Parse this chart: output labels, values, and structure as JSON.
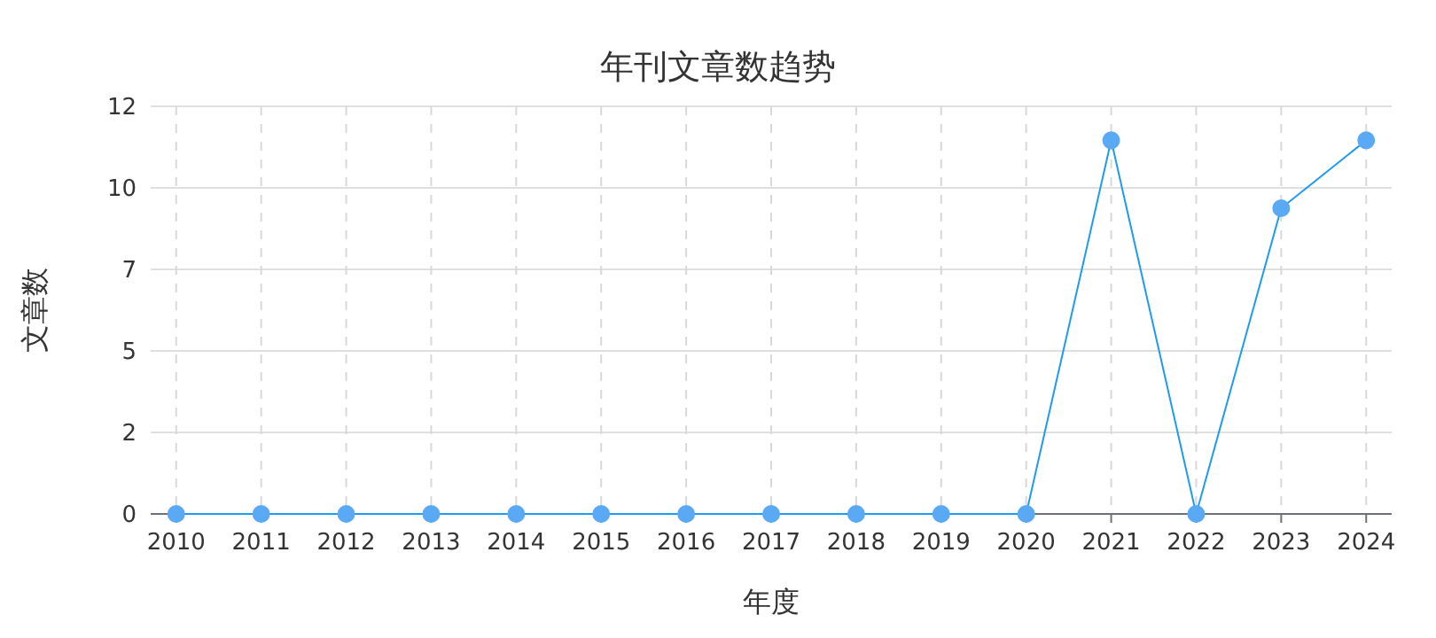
{
  "chart_data": {
    "type": "line",
    "title": "年刊文章数趋势",
    "xlabel": "年度",
    "ylabel": "文章数",
    "categories": [
      "2010",
      "2011",
      "2012",
      "2013",
      "2014",
      "2015",
      "2016",
      "2017",
      "2018",
      "2019",
      "2020",
      "2021",
      "2022",
      "2023",
      "2024"
    ],
    "series": [
      {
        "color": "#1e9af0",
        "values": [
          0,
          0,
          0,
          0,
          0,
          0,
          0,
          0,
          0,
          0,
          0,
          11,
          0,
          9,
          11
        ]
      }
    ],
    "ylim": [
      0,
      12
    ],
    "yticks": [
      0,
      {
        "value": 2.4,
        "label": "2"
      },
      {
        "value": 4.8,
        "label": "5"
      },
      {
        "value": 7.2,
        "label": "7"
      },
      {
        "value": 9.6,
        "label": "10"
      },
      12
    ],
    "grid": true,
    "marker": "circle",
    "line_style": "solid"
  }
}
